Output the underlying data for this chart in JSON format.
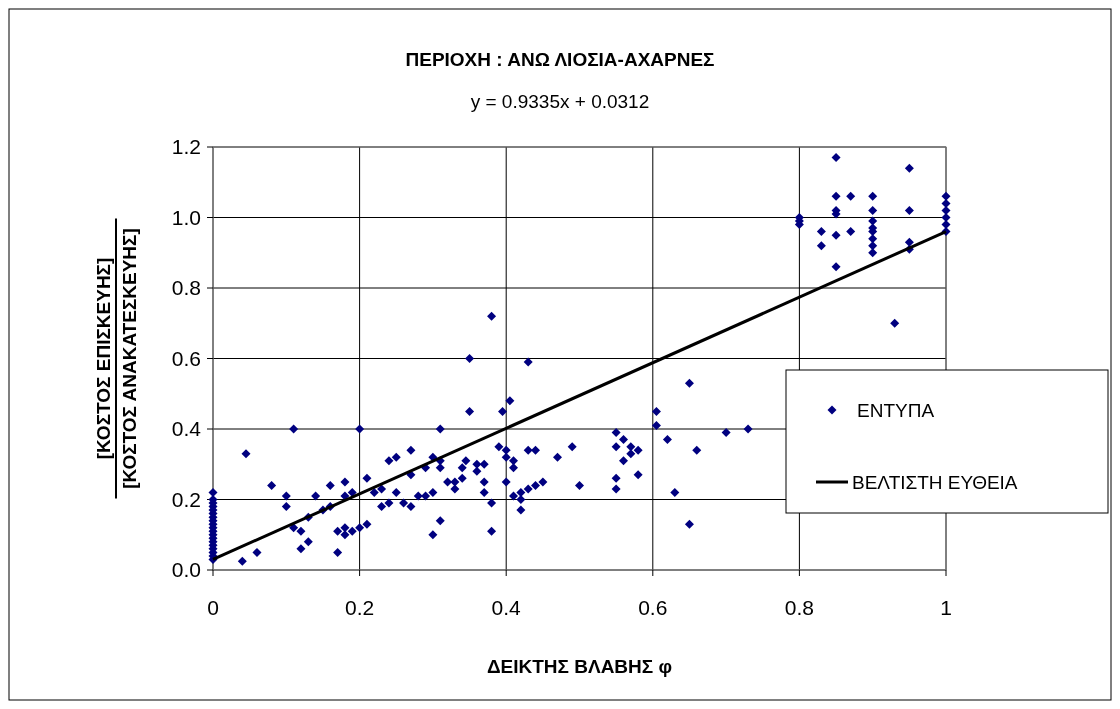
{
  "chart_data": {
    "type": "scatter",
    "title": "ΠΕΡΙΟΧΗ : ΑΝΩ ΛΙΟΣΙΑ-ΑΧΑΡΝΕΣ",
    "subtitle": "y = 0.9335x + 0.0312",
    "xlabel": "ΔΕΙΚΤΗΣ ΒΛΑΒΗΣ φ",
    "ylabel": "[ΚΟΣΤΟΣ ΕΠΙΣΚΕΥΗΣ]\n[ΚΟΣΤΟΣ ΑΝΑΚΑΤΕΣΚΕΥΗΣ]",
    "xlim": [
      0,
      1
    ],
    "xticks": [
      0,
      0.2,
      0.4,
      0.6,
      0.8,
      1
    ],
    "ylim": [
      0,
      1.2
    ],
    "yticks": [
      {
        "value": 0,
        "label": "0.0"
      },
      0.2,
      0.4,
      0.6,
      0.8,
      {
        "value": 1,
        "label": "1.0"
      },
      1.2
    ],
    "grid": true,
    "legend": "right",
    "marker": "diamond",
    "series": [
      {
        "name": "ΕΝΤΥΠΑ",
        "color": "#000080",
        "x": [
          0,
          0,
          0,
          0,
          0,
          0,
          0,
          0,
          0,
          0,
          0,
          0,
          0,
          0,
          0,
          0,
          0,
          0,
          0,
          0.04,
          0.06,
          0.045,
          0.08,
          0.1,
          0.1,
          0.11,
          0.12,
          0.11,
          0.12,
          0.13,
          0.13,
          0.14,
          0.15,
          0.16,
          0.16,
          0.17,
          0.17,
          0.18,
          0.18,
          0.18,
          0.18,
          0.19,
          0.19,
          0.2,
          0.2,
          0.21,
          0.21,
          0.22,
          0.23,
          0.23,
          0.24,
          0.24,
          0.25,
          0.25,
          0.26,
          0.27,
          0.27,
          0.27,
          0.28,
          0.29,
          0.29,
          0.3,
          0.3,
          0.3,
          0.31,
          0.31,
          0.31,
          0.31,
          0.32,
          0.33,
          0.33,
          0.34,
          0.34,
          0.345,
          0.35,
          0.35,
          0.36,
          0.36,
          0.37,
          0.37,
          0.37,
          0.38,
          0.38,
          0.38,
          0.39,
          0.395,
          0.4,
          0.4,
          0.4,
          0.405,
          0.41,
          0.41,
          0.41,
          0.42,
          0.42,
          0.42,
          0.43,
          0.43,
          0.43,
          0.44,
          0.44,
          0.45,
          0.47,
          0.49,
          0.5,
          0.55,
          0.55,
          0.55,
          0.55,
          0.56,
          0.56,
          0.57,
          0.57,
          0.58,
          0.58,
          0.605,
          0.605,
          0.62,
          0.63,
          0.65,
          0.65,
          0.66,
          0.7,
          0.73,
          0.8,
          0.8,
          0.8,
          0.83,
          0.83,
          0.85,
          0.85,
          0.85,
          0.85,
          0.85,
          0.85,
          0.87,
          0.87,
          0.9,
          0.9,
          0.9,
          0.9,
          0.9,
          0.9,
          0.9,
          0.9,
          0.93,
          0.95,
          0.95,
          0.95,
          0.95,
          1,
          1,
          1,
          1,
          1,
          1
        ],
        "values": [
          0.03,
          0.04,
          0.05,
          0.06,
          0.07,
          0.08,
          0.09,
          0.1,
          0.11,
          0.12,
          0.13,
          0.14,
          0.15,
          0.16,
          0.17,
          0.18,
          0.19,
          0.2,
          0.22,
          0.025,
          0.05,
          0.33,
          0.24,
          0.18,
          0.21,
          0.12,
          0.11,
          0.4,
          0.06,
          0.08,
          0.15,
          0.21,
          0.17,
          0.18,
          0.24,
          0.05,
          0.11,
          0.12,
          0.1,
          0.21,
          0.25,
          0.11,
          0.22,
          0.4,
          0.12,
          0.13,
          0.26,
          0.22,
          0.18,
          0.23,
          0.31,
          0.19,
          0.32,
          0.22,
          0.19,
          0.18,
          0.27,
          0.34,
          0.21,
          0.21,
          0.29,
          0.1,
          0.32,
          0.22,
          0.4,
          0.14,
          0.29,
          0.31,
          0.25,
          0.23,
          0.25,
          0.29,
          0.26,
          0.31,
          0.45,
          0.6,
          0.28,
          0.3,
          0.22,
          0.25,
          0.3,
          0.19,
          0.11,
          0.72,
          0.35,
          0.45,
          0.34,
          0.32,
          0.25,
          0.48,
          0.21,
          0.31,
          0.29,
          0.17,
          0.2,
          0.22,
          0.23,
          0.59,
          0.34,
          0.34,
          0.24,
          0.25,
          0.32,
          0.35,
          0.24,
          0.39,
          0.35,
          0.26,
          0.23,
          0.31,
          0.37,
          0.35,
          0.33,
          0.34,
          0.27,
          0.45,
          0.41,
          0.37,
          0.22,
          0.53,
          0.13,
          0.34,
          0.39,
          0.4,
          0.98,
          0.99,
          1,
          0.92,
          0.96,
          0.86,
          0.95,
          1.01,
          1.02,
          1.06,
          1.17,
          0.96,
          1.06,
          0.9,
          0.92,
          0.94,
          0.96,
          0.97,
          0.99,
          1.02,
          1.06,
          0.7,
          0.91,
          0.93,
          1.02,
          1.14,
          0.96,
          0.98,
          1,
          1.02,
          1.04,
          1.06
        ]
      },
      {
        "name": "ΒΕΛΤΙΣΤΗ ΕΥΘΕΙΑ",
        "type": "line",
        "color": "#000000",
        "marker": "none",
        "line_style": "solid",
        "x": [
          0,
          1
        ],
        "values": [
          0.03,
          0.96
        ]
      }
    ]
  }
}
